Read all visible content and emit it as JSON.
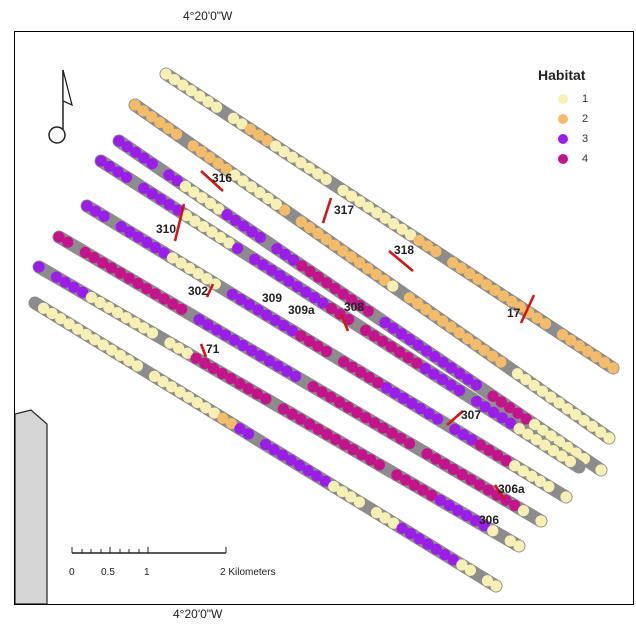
{
  "coordinates": {
    "top": "4°20'0\"W",
    "bottom": "4°20'0\"W"
  },
  "legend": {
    "title": "Habitat",
    "items": [
      {
        "label": "1",
        "color": "#f7f0b4"
      },
      {
        "label": "2",
        "color": "#f2bc6a"
      },
      {
        "label": "3",
        "color": "#9b1ee8"
      },
      {
        "label": "4",
        "color": "#c4148c"
      }
    ]
  },
  "scalebar": {
    "labels": [
      "0",
      "0.5",
      "1",
      "2 Kilometers"
    ]
  },
  "transect_labels": [
    "316",
    "317",
    "310",
    "318",
    "302",
    "309",
    "309a",
    "308",
    "17",
    "71",
    "307",
    "306a",
    "306"
  ],
  "colors": {
    "gap": "#8c8c8c",
    "marker": "#d01818",
    "land": "#d6d6d6"
  },
  "icons": {
    "north_arrow": "north-arrow-icon"
  }
}
